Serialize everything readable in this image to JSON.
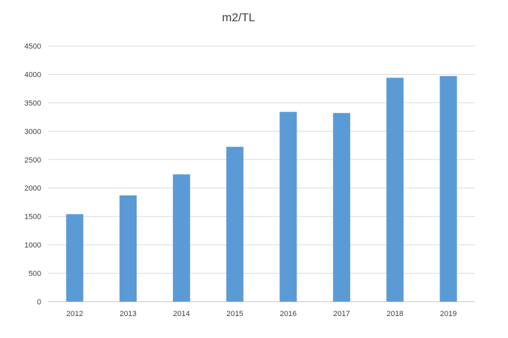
{
  "chart_data": {
    "type": "bar",
    "title": "m2/TL",
    "xlabel": "",
    "ylabel": "",
    "categories": [
      "2012",
      "2013",
      "2014",
      "2015",
      "2016",
      "2017",
      "2018",
      "2019"
    ],
    "values": [
      1540,
      1870,
      2240,
      2725,
      3340,
      3320,
      3940,
      3970
    ],
    "ylim": [
      0,
      4500
    ],
    "yticks": [
      0,
      500,
      1000,
      1500,
      2000,
      2500,
      3000,
      3500,
      4000,
      4500
    ],
    "grid": true,
    "legend": "none",
    "bar_color": "#5b9bd5"
  }
}
